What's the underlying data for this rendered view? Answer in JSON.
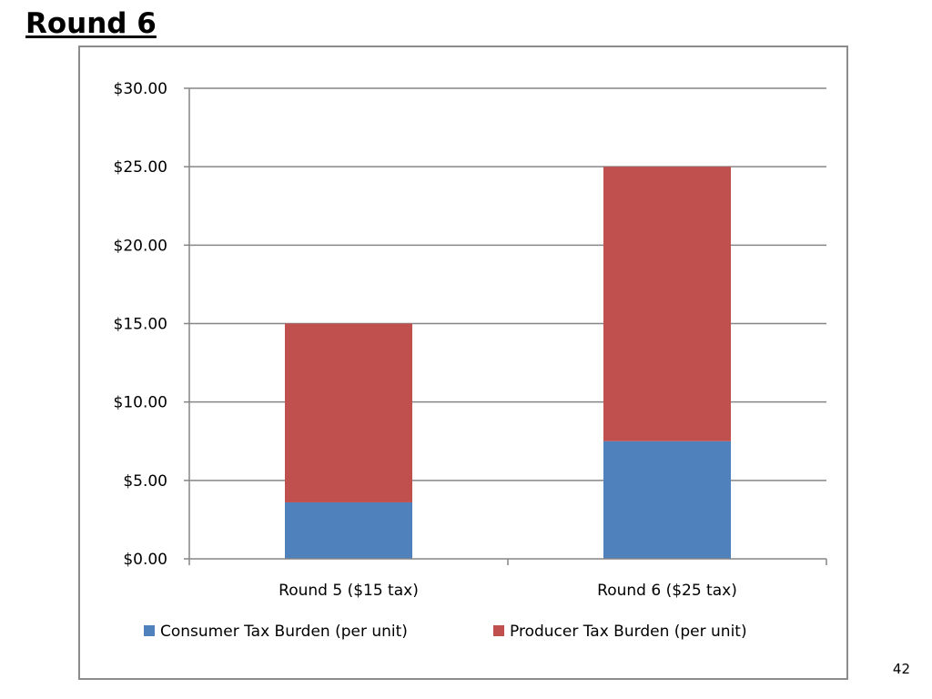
{
  "slide": {
    "title": "Round 6",
    "page_number": "42"
  },
  "chart_data": {
    "type": "bar",
    "stacked": true,
    "categories": [
      "Round 5 ($15 tax)",
      "Round 6 ($25 tax)"
    ],
    "series": [
      {
        "name": "Consumer Tax Burden (per unit)",
        "values": [
          3.6,
          7.5
        ],
        "color": "#4f81bd"
      },
      {
        "name": "Producer Tax Burden (per unit)",
        "values": [
          11.4,
          17.5
        ],
        "color": "#c0504d"
      }
    ],
    "yticks": [
      "$0.00",
      "$5.00",
      "$10.00",
      "$15.00",
      "$20.00",
      "$25.00",
      "$30.00"
    ],
    "ylim": [
      0,
      30
    ],
    "ytick_step": 5,
    "grid": true,
    "legend_position": "bottom",
    "title": "",
    "xlabel": "",
    "ylabel": ""
  }
}
